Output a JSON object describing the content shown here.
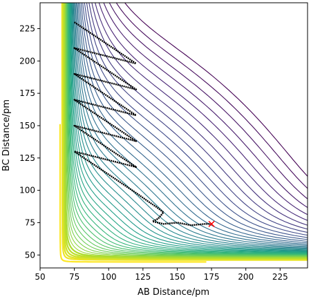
{
  "chart_data": {
    "type": "contour",
    "title": "",
    "xlabel": "AB Distance/pm",
    "ylabel": "BC Distance/pm",
    "xlim": [
      50,
      245
    ],
    "ylim": [
      40,
      245
    ],
    "xticks": [
      50,
      75,
      100,
      125,
      150,
      175,
      200,
      225
    ],
    "yticks": [
      50,
      75,
      100,
      125,
      150,
      175,
      200,
      225
    ],
    "colormap": "viridis",
    "grid": false,
    "legend": "none",
    "surface": {
      "equilibrium_bond_pm": 74,
      "asymptote_wall_pm": 63,
      "contour_levels": 42
    },
    "trajectory": {
      "color": "#000000",
      "x": [
        75,
        120,
        75,
        120,
        75,
        120,
        75,
        120,
        75,
        120,
        75,
        120,
        120,
        128,
        135,
        140,
        136,
        132,
        140,
        150,
        160,
        170,
        175
      ],
      "y": [
        230,
        198,
        210,
        178,
        190,
        158,
        170,
        138,
        150,
        118,
        130,
        98,
        98,
        92,
        87,
        83,
        78,
        76,
        74,
        75,
        73,
        74,
        74
      ]
    },
    "end_marker": {
      "symbol": "x",
      "color": "#ff0000",
      "x": 175,
      "y": 74
    }
  }
}
